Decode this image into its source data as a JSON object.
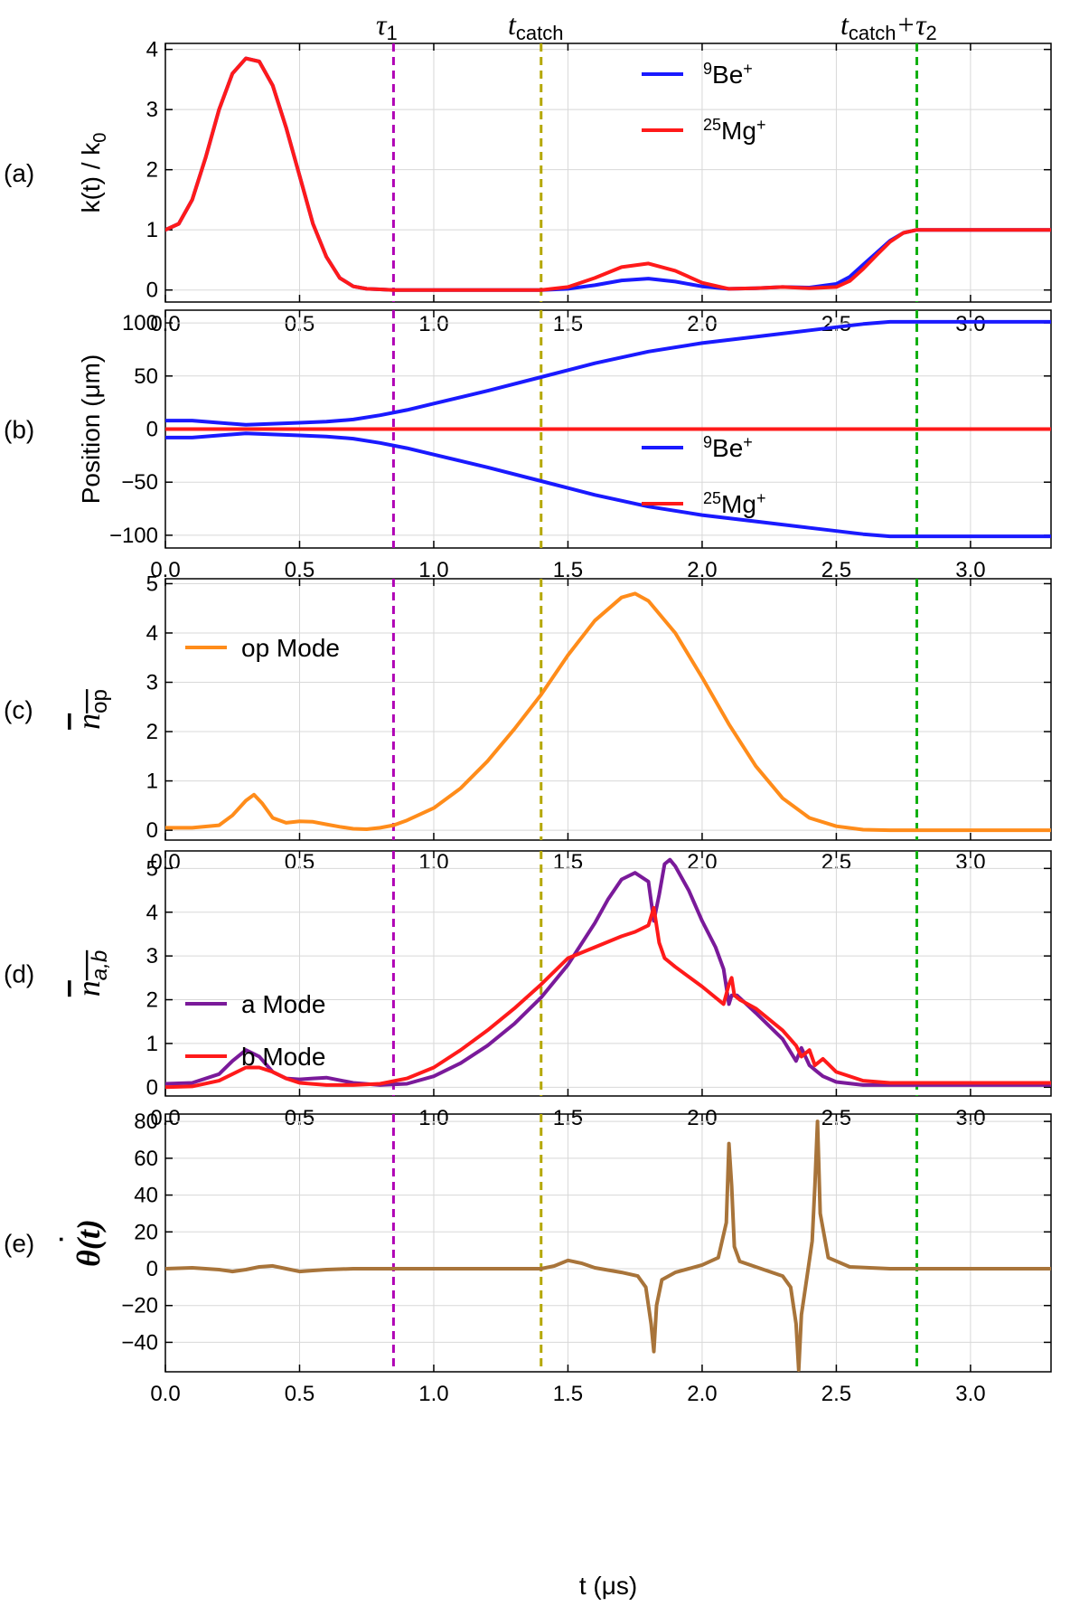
{
  "figure": {
    "x_label": "t (μs)",
    "top_labels": {
      "tau1": {
        "main": "τ",
        "sub": "1"
      },
      "tcatch": {
        "main": "t",
        "sub": "catch"
      },
      "tcatch_tau2": {
        "main": "t",
        "sub": "catch",
        "plus": "+τ",
        "sub2": "2"
      }
    },
    "markers": [
      {
        "name": "tau1",
        "t": 0.85,
        "color": "#b000b5"
      },
      {
        "name": "tcatch",
        "t": 1.4,
        "color": "#b5a800"
      },
      {
        "name": "tcatch+tau2",
        "t": 2.8,
        "color": "#10b010"
      }
    ],
    "colors": {
      "be": "#1a1aff",
      "mg": "#ff1a1a",
      "op": "#ff8c1a",
      "a": "#7a1a9a",
      "b": "#ff1a1a",
      "theta": "#a8743a",
      "grid": "#d8d8d8"
    }
  },
  "chart_data": [
    {
      "id": "a",
      "type": "line",
      "panel_label": "(a)",
      "ylabel_main": "k(t) / k",
      "ylabel_sub": "0",
      "xlim": [
        0,
        3.3
      ],
      "ylim": [
        -0.2,
        4.1
      ],
      "xticks": [
        "0.0",
        "0.5",
        "1.0",
        "1.5",
        "2.0",
        "2.5",
        "3.0"
      ],
      "yticks": [
        "0",
        "1",
        "2",
        "3",
        "4"
      ],
      "legend": [
        {
          "sup": "9",
          "label": "Be",
          "charge": "+"
        },
        {
          "sup": "25",
          "label": "Mg",
          "charge": "+"
        }
      ],
      "series": [
        {
          "name": "Be",
          "x": [
            0,
            0.05,
            0.1,
            0.15,
            0.2,
            0.25,
            0.3,
            0.35,
            0.4,
            0.45,
            0.5,
            0.55,
            0.6,
            0.65,
            0.7,
            0.75,
            0.8,
            0.85,
            1.0,
            1.2,
            1.4,
            1.5,
            1.6,
            1.7,
            1.8,
            1.9,
            2.0,
            2.1,
            2.2,
            2.3,
            2.4,
            2.5,
            2.55,
            2.6,
            2.65,
            2.7,
            2.75,
            2.8,
            3.3
          ],
          "y": [
            1.0,
            1.1,
            1.5,
            2.2,
            3.0,
            3.6,
            3.85,
            3.8,
            3.4,
            2.7,
            1.9,
            1.1,
            0.55,
            0.2,
            0.06,
            0.02,
            0.01,
            0.0,
            0.0,
            0.0,
            0.0,
            0.02,
            0.08,
            0.16,
            0.19,
            0.14,
            0.06,
            0.02,
            0.03,
            0.05,
            0.04,
            0.1,
            0.22,
            0.42,
            0.62,
            0.82,
            0.95,
            1.0,
            1.0
          ]
        },
        {
          "name": "Mg",
          "x": [
            0,
            0.05,
            0.1,
            0.15,
            0.2,
            0.25,
            0.3,
            0.35,
            0.4,
            0.45,
            0.5,
            0.55,
            0.6,
            0.65,
            0.7,
            0.75,
            0.8,
            0.85,
            1.0,
            1.2,
            1.4,
            1.5,
            1.6,
            1.7,
            1.8,
            1.9,
            2.0,
            2.1,
            2.2,
            2.3,
            2.4,
            2.5,
            2.55,
            2.6,
            2.65,
            2.7,
            2.75,
            2.8,
            3.3
          ],
          "y": [
            1.0,
            1.1,
            1.5,
            2.2,
            3.0,
            3.6,
            3.85,
            3.8,
            3.4,
            2.7,
            1.9,
            1.1,
            0.55,
            0.2,
            0.06,
            0.02,
            0.01,
            0.0,
            0.0,
            0.0,
            0.0,
            0.05,
            0.2,
            0.38,
            0.44,
            0.32,
            0.12,
            0.02,
            0.03,
            0.05,
            0.03,
            0.05,
            0.15,
            0.35,
            0.58,
            0.8,
            0.95,
            1.0,
            1.0
          ]
        }
      ]
    },
    {
      "id": "b",
      "type": "line",
      "panel_label": "(b)",
      "ylabel_main": "Position (μm)",
      "xlim": [
        0,
        3.3
      ],
      "ylim": [
        -112,
        112
      ],
      "xticks": [
        "0.0",
        "0.5",
        "1.0",
        "1.5",
        "2.0",
        "2.5",
        "3.0"
      ],
      "yticks": [
        "−100",
        "−50",
        "0",
        "50",
        "100"
      ],
      "ytick_values": [
        -100,
        -50,
        0,
        50,
        100
      ],
      "legend": [
        {
          "sup": "9",
          "label": "Be",
          "charge": "+"
        },
        {
          "sup": "25",
          "label": "Mg",
          "charge": "+"
        }
      ],
      "series": [
        {
          "name": "Be",
          "x": [
            0,
            0.1,
            0.2,
            0.3,
            0.4,
            0.5,
            0.6,
            0.7,
            0.8,
            0.9,
            1.0,
            1.2,
            1.4,
            1.6,
            1.8,
            2.0,
            2.2,
            2.4,
            2.6,
            2.7,
            2.8,
            3.3
          ],
          "y": [
            8,
            8,
            6,
            4,
            5,
            6,
            7,
            9,
            13,
            18,
            24,
            36,
            49,
            62,
            73,
            81,
            87,
            93,
            99,
            101,
            101,
            101
          ]
        },
        {
          "name": "Be",
          "x": [
            0,
            0.1,
            0.2,
            0.3,
            0.4,
            0.5,
            0.6,
            0.7,
            0.8,
            0.9,
            1.0,
            1.2,
            1.4,
            1.6,
            1.8,
            2.0,
            2.2,
            2.4,
            2.6,
            2.7,
            2.8,
            3.3
          ],
          "y": [
            -8,
            -8,
            -6,
            -4,
            -5,
            -6,
            -7,
            -9,
            -13,
            -18,
            -24,
            -36,
            -49,
            -62,
            -73,
            -81,
            -87,
            -93,
            -99,
            -101,
            -101,
            -101
          ]
        },
        {
          "name": "Mg",
          "x": [
            0,
            3.3
          ],
          "y": [
            0,
            0
          ]
        }
      ]
    },
    {
      "id": "c",
      "type": "line",
      "panel_label": "(c)",
      "ylabel_main": "n",
      "ylabel_sub": "op",
      "xlim": [
        0,
        3.3
      ],
      "ylim": [
        -0.2,
        5.1
      ],
      "xticks": [
        "0.0",
        "0.5",
        "1.0",
        "1.5",
        "2.0",
        "2.5",
        "3.0"
      ],
      "yticks": [
        "0",
        "1",
        "2",
        "3",
        "4",
        "5"
      ],
      "legend": [
        {
          "label": "op Mode"
        }
      ],
      "series": [
        {
          "name": "op Mode",
          "x": [
            0,
            0.1,
            0.2,
            0.25,
            0.3,
            0.33,
            0.36,
            0.4,
            0.45,
            0.5,
            0.55,
            0.6,
            0.65,
            0.7,
            0.75,
            0.8,
            0.85,
            0.9,
            1.0,
            1.1,
            1.2,
            1.3,
            1.4,
            1.5,
            1.6,
            1.7,
            1.75,
            1.8,
            1.9,
            2.0,
            2.1,
            2.2,
            2.3,
            2.4,
            2.5,
            2.6,
            2.7,
            2.8,
            3.3
          ],
          "y": [
            0.05,
            0.05,
            0.1,
            0.3,
            0.6,
            0.72,
            0.55,
            0.25,
            0.15,
            0.18,
            0.17,
            0.12,
            0.07,
            0.03,
            0.02,
            0.05,
            0.1,
            0.2,
            0.45,
            0.85,
            1.4,
            2.05,
            2.75,
            3.55,
            4.25,
            4.72,
            4.8,
            4.65,
            4.0,
            3.1,
            2.15,
            1.3,
            0.65,
            0.25,
            0.08,
            0.01,
            0.0,
            0.0,
            0.0
          ]
        }
      ]
    },
    {
      "id": "d",
      "type": "line",
      "panel_label": "(d)",
      "ylabel_main": "n",
      "ylabel_sub": "a,b",
      "xlim": [
        0,
        3.3
      ],
      "ylim": [
        -0.2,
        5.4
      ],
      "xticks": [
        "0.0",
        "0.5",
        "1.0",
        "1.5",
        "2.0",
        "2.5",
        "3.0"
      ],
      "yticks": [
        "0",
        "1",
        "2",
        "3",
        "4",
        "5"
      ],
      "legend": [
        {
          "label": "a Mode"
        },
        {
          "label": "b Mode"
        }
      ],
      "series": [
        {
          "name": "a Mode",
          "x": [
            0,
            0.1,
            0.2,
            0.25,
            0.3,
            0.35,
            0.4,
            0.45,
            0.5,
            0.55,
            0.6,
            0.7,
            0.8,
            0.9,
            1.0,
            1.1,
            1.2,
            1.3,
            1.4,
            1.5,
            1.6,
            1.65,
            1.7,
            1.75,
            1.8,
            1.82,
            1.84,
            1.86,
            1.88,
            1.9,
            1.95,
            2.0,
            2.05,
            2.08,
            2.1,
            2.11,
            2.13,
            2.2,
            2.3,
            2.35,
            2.37,
            2.4,
            2.43,
            2.45,
            2.5,
            2.6,
            2.8,
            3.3
          ],
          "y": [
            0.08,
            0.1,
            0.3,
            0.6,
            0.85,
            0.7,
            0.35,
            0.2,
            0.18,
            0.2,
            0.22,
            0.1,
            0.05,
            0.08,
            0.25,
            0.55,
            0.95,
            1.45,
            2.05,
            2.8,
            3.75,
            4.3,
            4.75,
            4.9,
            4.7,
            3.8,
            4.4,
            5.1,
            5.2,
            5.05,
            4.5,
            3.8,
            3.2,
            2.7,
            1.9,
            2.1,
            2.1,
            1.7,
            1.1,
            0.6,
            0.9,
            0.5,
            0.35,
            0.25,
            0.12,
            0.05,
            0.05,
            0.05
          ]
        },
        {
          "name": "b Mode",
          "x": [
            0,
            0.1,
            0.2,
            0.25,
            0.3,
            0.35,
            0.4,
            0.45,
            0.5,
            0.6,
            0.7,
            0.8,
            0.9,
            1.0,
            1.1,
            1.2,
            1.3,
            1.4,
            1.5,
            1.6,
            1.7,
            1.75,
            1.8,
            1.82,
            1.84,
            1.86,
            1.9,
            2.0,
            2.08,
            2.1,
            2.11,
            2.12,
            2.14,
            2.2,
            2.3,
            2.35,
            2.37,
            2.4,
            2.42,
            2.45,
            2.5,
            2.6,
            2.7,
            2.8,
            3.3
          ],
          "y": [
            0.0,
            0.02,
            0.15,
            0.3,
            0.45,
            0.45,
            0.35,
            0.2,
            0.1,
            0.05,
            0.05,
            0.08,
            0.2,
            0.45,
            0.85,
            1.3,
            1.8,
            2.35,
            2.95,
            3.2,
            3.45,
            3.55,
            3.7,
            4.1,
            3.3,
            2.95,
            2.75,
            2.3,
            1.9,
            2.35,
            2.5,
            2.1,
            2.0,
            1.8,
            1.3,
            0.95,
            0.7,
            0.85,
            0.5,
            0.65,
            0.35,
            0.15,
            0.1,
            0.1,
            0.1
          ]
        }
      ]
    },
    {
      "id": "e",
      "type": "line",
      "panel_label": "(e)",
      "ylabel_main": "θ(t)",
      "ylabel_dot": "˙",
      "xlim": [
        0,
        3.3
      ],
      "ylim": [
        -56,
        84
      ],
      "xticks": [
        "0.0",
        "0.5",
        "1.0",
        "1.5",
        "2.0",
        "2.5",
        "3.0"
      ],
      "yticks": [
        "−40",
        "−20",
        "0",
        "20",
        "40",
        "60",
        "80"
      ],
      "ytick_values": [
        -40,
        -20,
        0,
        20,
        40,
        60,
        80
      ],
      "series": [
        {
          "name": "theta_dot",
          "x": [
            0,
            0.1,
            0.2,
            0.25,
            0.3,
            0.35,
            0.4,
            0.45,
            0.5,
            0.55,
            0.6,
            0.7,
            0.85,
            1.0,
            1.2,
            1.4,
            1.45,
            1.5,
            1.55,
            1.6,
            1.7,
            1.76,
            1.79,
            1.81,
            1.82,
            1.83,
            1.85,
            1.9,
            2.0,
            2.06,
            2.09,
            2.1,
            2.11,
            2.12,
            2.14,
            2.2,
            2.3,
            2.33,
            2.35,
            2.36,
            2.37,
            2.39,
            2.41,
            2.42,
            2.43,
            2.44,
            2.47,
            2.55,
            2.7,
            2.8,
            3.3
          ],
          "y": [
            0,
            0.5,
            -0.5,
            -1.5,
            -0.5,
            1,
            1.5,
            0,
            -1.5,
            -1,
            -0.5,
            0,
            0,
            0,
            0,
            0,
            1.5,
            4.5,
            3,
            0.5,
            -2,
            -4,
            -10,
            -30,
            -45,
            -20,
            -6,
            -2,
            2,
            6,
            25,
            68,
            45,
            12,
            4,
            1,
            -4,
            -10,
            -30,
            -55,
            -25,
            -5,
            15,
            45,
            80,
            30,
            6,
            1,
            0,
            0,
            0
          ]
        }
      ]
    }
  ]
}
